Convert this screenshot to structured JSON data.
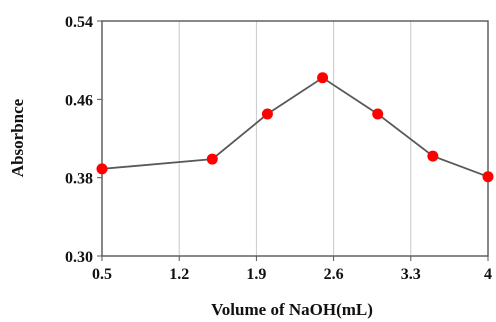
{
  "chart_data": {
    "type": "line",
    "title": "",
    "xlabel": "Volume of NaOH(mL)",
    "ylabel": "Absorbnce",
    "xlim": [
      0.5,
      4
    ],
    "ylim": [
      0.3,
      0.54
    ],
    "x_ticks": [
      "0.5",
      "1.2",
      "1.9",
      "2.6",
      "3.3",
      "4"
    ],
    "y_ticks": [
      "0.30",
      "0.38",
      "0.46",
      "0.54"
    ],
    "grid": "vertical",
    "series": [
      {
        "x": [
          0.5,
          1.5,
          2.0,
          2.5,
          3.0,
          3.5,
          4.0
        ],
        "y": [
          0.389,
          0.399,
          0.445,
          0.482,
          0.445,
          0.402,
          0.381
        ],
        "line_color": "#595959",
        "marker_color": "#ff0000"
      }
    ]
  }
}
